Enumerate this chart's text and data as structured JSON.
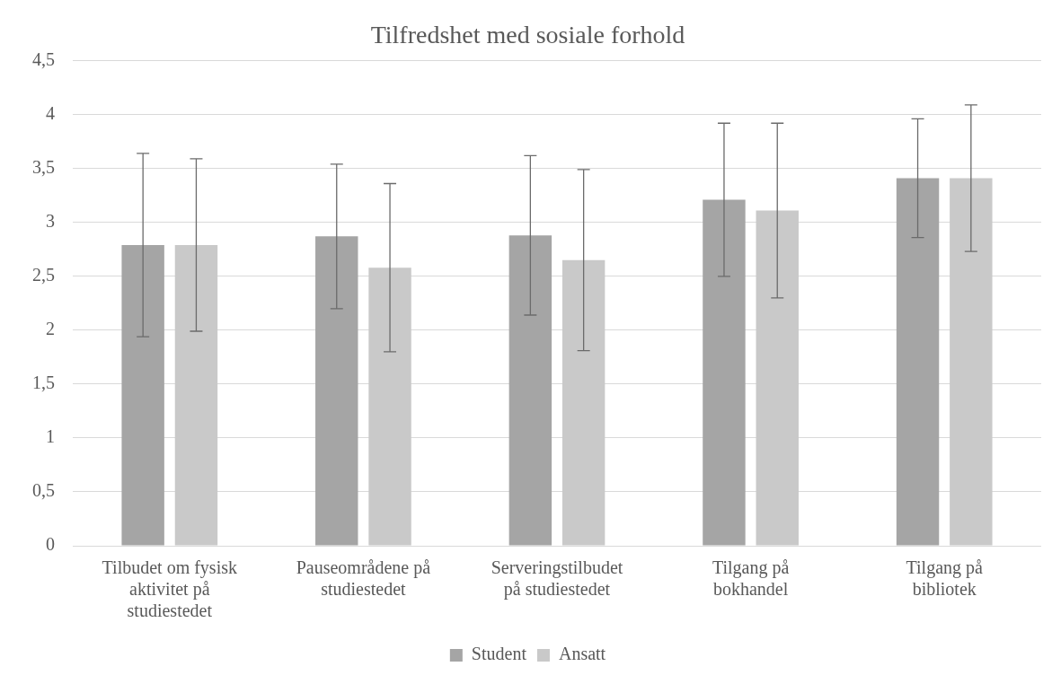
{
  "chart_data": {
    "type": "bar",
    "title": "Tilfredshet med sosiale forhold",
    "categories": [
      "Tilbudet om fysisk aktivitet på studiestedet",
      "Pauseområdene på studiestedet",
      "Serveringstilbudet på studiestedet",
      "Tilgang på bokhandel",
      "Tilgang på bibliotek"
    ],
    "series": [
      {
        "name": "Student",
        "color": "#a5a5a5",
        "values": [
          2.79,
          2.87,
          2.88,
          3.21,
          3.41
        ],
        "errors": [
          0.85,
          0.67,
          0.74,
          0.71,
          0.55
        ]
      },
      {
        "name": "Ansatt",
        "color": "#c9c9c9",
        "values": [
          2.79,
          2.58,
          2.65,
          3.11,
          3.41
        ],
        "errors": [
          0.8,
          0.78,
          0.84,
          0.81,
          0.68
        ]
      }
    ],
    "ylim": [
      0,
      4.5
    ],
    "yticks": [
      0,
      {
        "value": 0.5,
        "label": "0,5"
      },
      1,
      {
        "value": 1.5,
        "label": "1,5"
      },
      2,
      {
        "value": 2.5,
        "label": "2,5"
      },
      3,
      {
        "value": 3.5,
        "label": "3,5"
      },
      4,
      {
        "value": 4.5,
        "label": "4,5"
      }
    ],
    "grid": "y",
    "legend": "bottom"
  }
}
